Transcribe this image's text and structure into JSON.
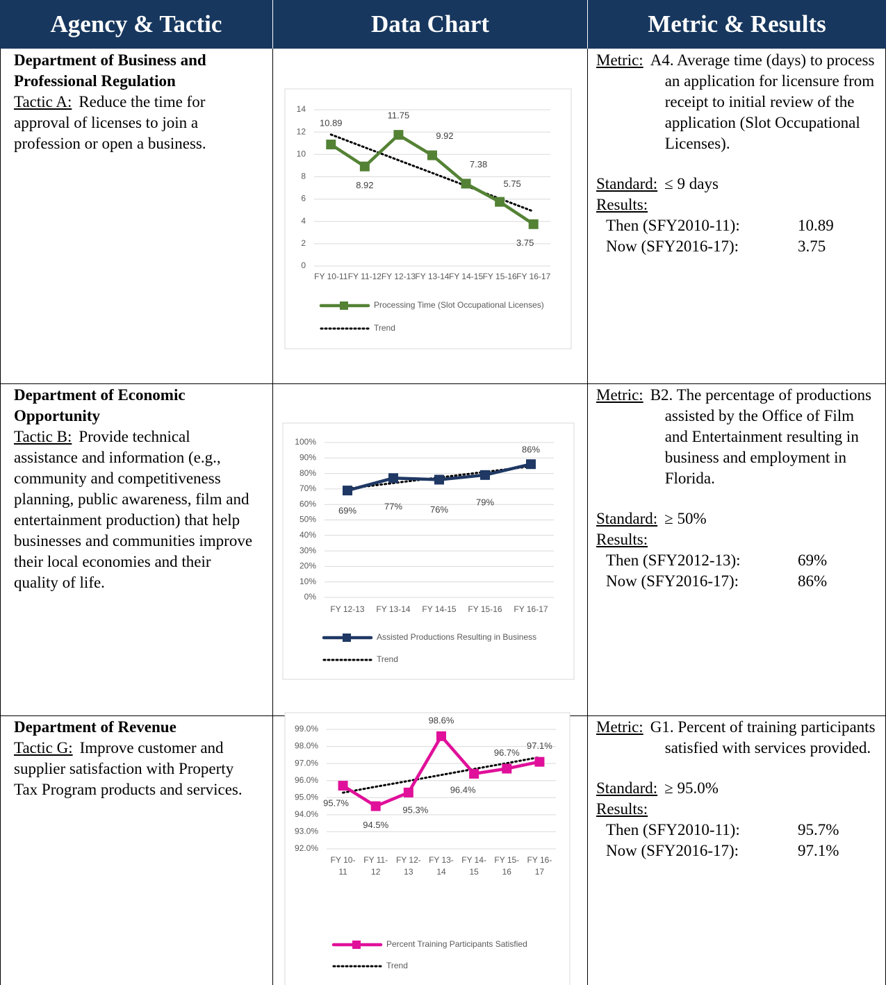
{
  "header": [
    "Agency & Tactic",
    "Data Chart",
    "Metric & Results"
  ],
  "rows": [
    {
      "agency": "Department of Business and Professional Regulation",
      "tactic_label": "Tactic A:",
      "tactic": "Reduce the time for approval of licenses to join a profession or open a business.",
      "metric_label": "Metric:",
      "metric": "A4. Average time (days) to process an application for licensure from receipt to initial review of the application (Slot Occupational Licenses).",
      "standard_label": "Standard:",
      "standard": "≤ 9 days",
      "results_label": "Results:",
      "then_label": "Then (SFY2010-11):",
      "then_value": "10.89",
      "now_label": "Now (SFY2016-17):",
      "now_value": "3.75"
    },
    {
      "agency": "Department of Economic Opportunity",
      "tactic_label": "Tactic B:",
      "tactic": "Provide technical assistance and information (e.g., community and competitiveness planning, public awareness, film and entertainment production) that help businesses and communities improve their local economies and their quality of life.",
      "metric_label": "Metric:",
      "metric": "B2. The percentage of productions assisted by the Office of Film and Entertainment resulting in business and employment in Florida.",
      "standard_label": "Standard:",
      "standard": "≥ 50%",
      "results_label": "Results:",
      "then_label": "Then (SFY2012-13):",
      "then_value": "69%",
      "now_label": "Now (SFY2016-17):",
      "now_value": "86%"
    },
    {
      "agency": "Department of Revenue",
      "tactic_label": "Tactic G:",
      "tactic": "Improve customer and supplier satisfaction with Property Tax Program products and services.",
      "metric_label": "Metric:",
      "metric": "G1. Percent of training participants satisfied with services provided.",
      "standard_label": "Standard:",
      "standard": "≥ 95.0%",
      "results_label": "Results:",
      "then_label": "Then (SFY2010-11):",
      "then_value": "95.7%",
      "now_label": "Now (SFY2016-17):",
      "now_value": "97.1%"
    }
  ],
  "chart_data": [
    {
      "type": "line",
      "categories": [
        "FY 10-11",
        "FY 11-12",
        "FY 12-13",
        "FY 13-14",
        "FY 14-15",
        "FY 15-16",
        "FY 16-17"
      ],
      "series": [
        {
          "name": "Processing Time (Slot Occupational Licenses)",
          "color": "#548235",
          "values": [
            10.89,
            8.92,
            11.75,
            9.92,
            7.38,
            5.75,
            3.75
          ]
        },
        {
          "name": "Trend",
          "color": "#000000",
          "dotted": true,
          "values": [
            11.78,
            10.63,
            9.48,
            8.34,
            7.19,
            6.04,
            4.89
          ]
        }
      ],
      "ylim": [
        0,
        14
      ],
      "yticks": [
        0,
        2,
        4,
        6,
        8,
        10,
        12,
        14
      ],
      "grid": true,
      "data_labels": true
    },
    {
      "type": "line",
      "categories": [
        "FY 12-13",
        "FY 13-14",
        "FY 14-15",
        "FY 15-16",
        "FY 16-17"
      ],
      "series": [
        {
          "name": "Assisted Productions Resulting in Business",
          "color": "#1f3864",
          "values": [
            69,
            77,
            76,
            79,
            86
          ],
          "value_labels": [
            "69%",
            "77%",
            "76%",
            "79%",
            "86%"
          ]
        },
        {
          "name": "Trend",
          "color": "#000000",
          "dotted": true,
          "values": [
            70.2,
            73.8,
            77.4,
            81,
            84.6
          ]
        }
      ],
      "ylim": [
        0,
        100
      ],
      "yticks": [
        {
          "value": 0,
          "label": "0%"
        },
        {
          "value": 10,
          "label": "10%"
        },
        {
          "value": 20,
          "label": "20%"
        },
        {
          "value": 30,
          "label": "30%"
        },
        {
          "value": 40,
          "label": "40%"
        },
        {
          "value": 50,
          "label": "50%"
        },
        {
          "value": 60,
          "label": "60%"
        },
        {
          "value": 70,
          "label": "70%"
        },
        {
          "value": 80,
          "label": "80%"
        },
        {
          "value": 90,
          "label": "90%"
        },
        {
          "value": 100,
          "label": "100%"
        }
      ],
      "grid": true,
      "data_labels": true
    },
    {
      "type": "line",
      "categories": [
        "FY 10-11",
        "FY 11-12",
        "FY 12-13",
        "FY 13-14",
        "FY 14-15",
        "FY 15-16",
        "FY 16-17"
      ],
      "series": [
        {
          "name": "Percent Training Participants Satisfied",
          "color": "#e0109a",
          "values": [
            95.7,
            94.5,
            95.3,
            98.6,
            96.4,
            96.7,
            97.1
          ],
          "value_labels": [
            "95.7%",
            "94.5%",
            "95.3%",
            "98.6%",
            "96.4%",
            "96.7%",
            "97.1%"
          ]
        },
        {
          "name": "Trend",
          "color": "#000000",
          "dotted": true,
          "values": [
            95.29,
            95.64,
            95.98,
            96.33,
            96.68,
            97.02,
            97.37
          ]
        }
      ],
      "ylim": [
        92,
        99
      ],
      "yticks": [
        {
          "value": 92,
          "label": "92.0%"
        },
        {
          "value": 93,
          "label": "93.0%"
        },
        {
          "value": 94,
          "label": "94.0%"
        },
        {
          "value": 95,
          "label": "95.0%"
        },
        {
          "value": 96,
          "label": "96.0%"
        },
        {
          "value": 97,
          "label": "97.0%"
        },
        {
          "value": 98,
          "label": "98.0%"
        },
        {
          "value": 99,
          "label": "99.0%"
        }
      ],
      "grid": true,
      "data_labels": true
    }
  ]
}
